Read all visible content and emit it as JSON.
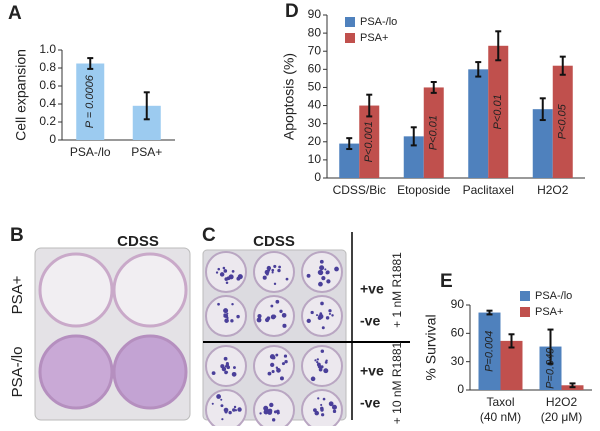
{
  "chart_data": [
    {
      "type": "bar",
      "panel": "A",
      "ylabel": "Cell expansion",
      "categories": [
        "PSA-/lo",
        "PSA+"
      ],
      "values": [
        0.85,
        0.38
      ],
      "errors": [
        0.06,
        0.15
      ],
      "color": "#9ccbf0",
      "ylim": [
        0,
        1
      ],
      "yticks": [
        0,
        0.2,
        0.4,
        0.6,
        0.8,
        {
          "value": 1,
          "label": "1.0"
        }
      ],
      "annotations": [
        "P = 0.0006"
      ]
    },
    {
      "type": "bar",
      "panel": "D",
      "ylabel": "Apoptosis (%)",
      "legend": "upper left",
      "categories": [
        "CDSS/Bic",
        "Etoposide",
        "Paclitaxel",
        "H2O2"
      ],
      "series": [
        {
          "name": "PSA-/lo",
          "color": "#4f81bd",
          "values": [
            19,
            23,
            60,
            38
          ],
          "errors": [
            3,
            5,
            4,
            6
          ]
        },
        {
          "name": "PSA+",
          "color": "#c0504d",
          "values": [
            40,
            50,
            73,
            62
          ],
          "errors": [
            6,
            3,
            8,
            5
          ]
        }
      ],
      "ylim": [
        0,
        90
      ],
      "yticks": [
        0,
        10,
        20,
        30,
        40,
        50,
        60,
        70,
        80,
        90
      ],
      "annotations": [
        "P<0.001",
        "P<0.01",
        "P<0.01",
        "P<0.05"
      ]
    },
    {
      "type": "bar",
      "panel": "E",
      "ylabel": "% Survival",
      "legend": "upper right",
      "categories": [
        "Taxol",
        "H2O2"
      ],
      "category_sublabels": [
        "(40 nM)",
        "(20 μM)"
      ],
      "series": [
        {
          "name": "PSA-/lo",
          "color": "#4f81bd",
          "values": [
            82,
            46
          ],
          "errors": [
            2,
            18
          ]
        },
        {
          "name": "PSA+",
          "color": "#c0504d",
          "values": [
            52,
            5
          ],
          "errors": [
            7,
            2
          ]
        }
      ],
      "ylim": [
        0,
        90
      ],
      "yticks": [
        0,
        30,
        60,
        90
      ],
      "annotations": [
        "P=0.004",
        "P=0.049"
      ]
    }
  ],
  "images": [
    {
      "panel": "B",
      "title": "CDSS",
      "row_labels": [
        "PSA+",
        "PSA-/lo"
      ]
    },
    {
      "panel": "C",
      "title": "CDSS",
      "row_labels": [
        "+ve",
        "-ve",
        "+ve",
        "-ve"
      ],
      "side_labels": [
        "+ 1 nM R1881",
        "+ 10 nM R1881"
      ]
    }
  ]
}
